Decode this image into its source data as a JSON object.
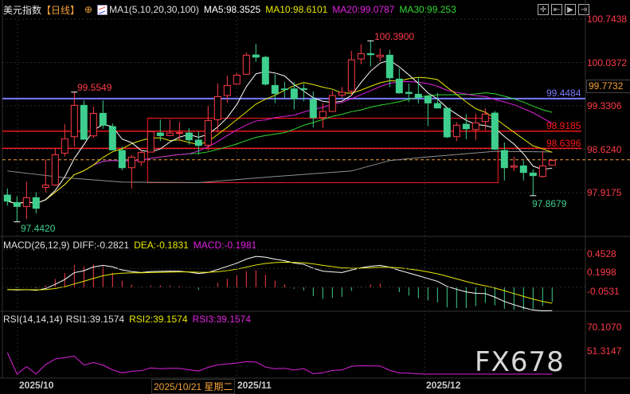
{
  "header": {
    "title": "美元指数",
    "period": "【日线】",
    "indicator_name": "MA1(5,10,20,30,100)",
    "ma5": "MA5:98.3525",
    "ma10": "MA10:98.6101",
    "ma20": "MA20:99.0787",
    "ma30": "MA30:99.253"
  },
  "toolbar": {
    "icons": [
      "crosshair-icon",
      "move-left-icon",
      "play-right-icon",
      "move-end-icon"
    ],
    "glyphs": [
      "✛",
      "⇤",
      "▶",
      "⇥"
    ]
  },
  "colors": {
    "up": "#ff3b4a",
    "down": "#3ecf8e",
    "ma5": "#ffffff",
    "ma10": "#e8e800",
    "ma20": "#e020e0",
    "ma30": "#30d830",
    "ma100": "#909090",
    "blue_line": "#7a7aff",
    "red_line": "#ff1a1a",
    "last_price": "#f2a03a"
  },
  "price_axis": {
    "labels": [
      "100.7438",
      "100.0372",
      "99.3306",
      "98.6240",
      "97.9175"
    ],
    "values": [
      100.7438,
      100.0372,
      99.3306,
      98.624,
      97.9175
    ],
    "crosshair_value": "99.7732"
  },
  "annotations": {
    "high_left": "99.5549",
    "low_left": "97.4420",
    "high_peak": "100.3900",
    "low_recent": "97.8679"
  },
  "lines": [
    {
      "value": 99.4484,
      "label": "99.4484",
      "color": "#7a7aff"
    },
    {
      "value": 98.9185,
      "label": "98.9185",
      "color": "#ff1a1a"
    },
    {
      "value": 98.6396,
      "label": "98.6396",
      "color": "#ff1a1a"
    }
  ],
  "box": {
    "from_index": 15,
    "to_index": 51,
    "top": 99.13,
    "bottom": 98.08
  },
  "macd": {
    "label": "MACD(26,12,9)",
    "diff": "DIFF:-0.2821",
    "dea": "DEA:-0.1831",
    "macd": "MACD:-0.1981",
    "axis_labels": [
      "0.4528",
      "0.1998",
      "-0.0531"
    ],
    "axis_values": [
      0.4528,
      0.1998,
      -0.0531
    ]
  },
  "rsi": {
    "label": "RSI(14,14,14)",
    "rsi1": "RSI1:39.1574",
    "rsi2": "RSI2:39.1574",
    "rsi3": "RSI3:39.1574",
    "axis_labels": [
      "70.1070",
      "51.3147"
    ],
    "axis_values": [
      70.107,
      51.3147
    ]
  },
  "dates": {
    "oct": "2025/10",
    "nov": "2025/11",
    "dec": "2025/12",
    "crosshair": "2025/10/21 星期二"
  },
  "watermark": "FX678",
  "chart_data": {
    "type": "candlestick",
    "ohlc": [
      [
        97.878,
        97.986,
        97.705,
        97.779
      ],
      [
        97.757,
        97.856,
        97.442,
        97.692
      ],
      [
        97.692,
        98.094,
        97.489,
        97.835
      ],
      [
        97.835,
        97.921,
        97.575,
        97.662
      ],
      [
        98.003,
        98.461,
        97.921,
        98.042
      ],
      [
        98.042,
        98.634,
        98.029,
        98.535
      ],
      [
        98.561,
        99.032,
        98.505,
        98.794
      ],
      [
        98.829,
        99.555,
        98.669,
        99.339
      ],
      [
        99.339,
        99.421,
        98.786,
        98.786
      ],
      [
        98.842,
        99.317,
        98.807,
        99.209
      ],
      [
        99.209,
        99.421,
        98.958,
        99.015
      ],
      [
        98.993,
        99.045,
        98.613,
        98.613
      ],
      [
        98.604,
        98.669,
        98.28,
        98.323
      ],
      [
        98.323,
        98.526,
        97.986,
        98.496
      ],
      [
        98.418,
        98.613,
        98.353,
        98.57
      ],
      [
        98.578,
        98.911,
        98.578,
        98.911
      ],
      [
        98.889,
        99.11,
        98.755,
        98.846
      ],
      [
        98.846,
        99.11,
        98.842,
        98.889
      ],
      [
        98.881,
        99.067,
        98.764,
        98.894
      ],
      [
        98.889,
        98.967,
        98.699,
        98.777
      ],
      [
        98.773,
        98.915,
        98.535,
        98.686
      ],
      [
        98.69,
        99.326,
        98.6,
        99.092
      ],
      [
        99.105,
        99.693,
        98.894,
        99.481
      ],
      [
        99.499,
        99.823,
        99.386,
        99.663
      ],
      [
        99.685,
        99.866,
        99.685,
        99.831
      ],
      [
        99.845,
        100.199,
        99.845,
        100.156
      ],
      [
        100.16,
        100.341,
        100.048,
        100.125
      ],
      [
        100.121,
        100.147,
        99.659,
        99.685
      ],
      [
        99.663,
        99.845,
        99.378,
        99.533
      ],
      [
        99.607,
        99.723,
        99.456,
        99.594
      ],
      [
        99.607,
        99.715,
        99.274,
        99.447
      ],
      [
        99.611,
        99.693,
        99.404,
        99.603
      ],
      [
        99.434,
        99.564,
        98.98,
        99.14
      ],
      [
        99.14,
        99.378,
        98.972,
        99.239
      ],
      [
        99.239,
        99.577,
        99.239,
        99.499
      ],
      [
        99.507,
        99.637,
        99.464,
        99.551
      ],
      [
        99.572,
        100.225,
        99.499,
        100.082
      ],
      [
        100.095,
        100.333,
        100.009,
        100.182
      ],
      [
        100.182,
        100.39,
        99.974,
        100.164
      ],
      [
        100.13,
        100.264,
        100.052,
        100.156
      ],
      [
        100.156,
        100.242,
        99.637,
        99.788
      ],
      [
        99.767,
        99.94,
        99.529,
        99.542
      ],
      [
        99.551,
        99.693,
        99.391,
        99.533
      ],
      [
        99.52,
        99.801,
        99.369,
        99.464
      ],
      [
        99.486,
        99.499,
        99.002,
        99.378
      ],
      [
        99.369,
        99.542,
        99.296,
        99.296
      ],
      [
        99.291,
        99.291,
        98.807,
        98.825
      ],
      [
        98.829,
        99.067,
        98.755,
        99.015
      ],
      [
        99.032,
        99.196,
        98.786,
        98.958
      ],
      [
        98.945,
        99.205,
        98.777,
        99.054
      ],
      [
        99.075,
        99.291,
        98.937,
        99.196
      ],
      [
        99.213,
        99.248,
        98.613,
        98.626
      ],
      [
        98.604,
        98.738,
        98.116,
        98.323
      ],
      [
        98.332,
        98.505,
        98.267,
        98.353
      ],
      [
        98.353,
        98.44,
        98.116,
        98.245
      ],
      [
        98.237,
        98.297,
        97.868,
        98.194
      ],
      [
        98.181,
        98.6,
        98.159,
        98.353
      ],
      [
        98.366,
        98.461,
        98.366,
        98.44
      ]
    ],
    "ma100": [
      [
        0,
        98.27
      ],
      [
        6,
        98.16
      ],
      [
        12,
        98.09
      ],
      [
        20,
        98.08
      ],
      [
        28,
        98.18
      ],
      [
        36,
        98.27
      ],
      [
        40,
        98.44
      ],
      [
        44,
        98.5
      ],
      [
        51,
        98.59
      ],
      [
        57,
        98.58
      ]
    ],
    "ylim": [
      97.9175,
      100.7438
    ]
  }
}
